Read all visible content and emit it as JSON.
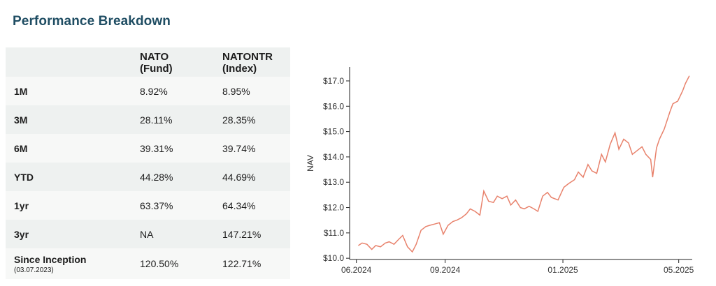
{
  "header": {
    "title": "Performance Breakdown"
  },
  "table": {
    "columns": [
      {
        "line1": "",
        "line2": ""
      },
      {
        "line1": "NATO",
        "line2": "(Fund)"
      },
      {
        "line1": "NATONTR",
        "line2": "(Index)"
      }
    ],
    "rows": [
      {
        "label": "1M",
        "fund": "8.92%",
        "index": "8.95%"
      },
      {
        "label": "3M",
        "fund": "28.11%",
        "index": "28.35%"
      },
      {
        "label": "6M",
        "fund": "39.31%",
        "index": "39.74%"
      },
      {
        "label": "YTD",
        "fund": "44.28%",
        "index": "44.69%"
      },
      {
        "label": "1yr",
        "fund": "63.37%",
        "index": "64.34%"
      },
      {
        "label": "3yr",
        "fund": "NA",
        "index": "147.21%"
      },
      {
        "label": "Since Inception",
        "sublabel": "(03.07.2023)",
        "fund": "120.50%",
        "index": "122.71%"
      }
    ]
  },
  "chart_data": {
    "type": "line",
    "title": "",
    "xlabel": "",
    "ylabel": "NAV",
    "xticks": [
      "06.2024",
      "09.2024",
      "01.2025",
      "05.2025"
    ],
    "yticks": [
      "$10.0",
      "$11.0",
      "$12.0",
      "$13.0",
      "$14.0",
      "$15.0",
      "$16.0",
      "$17.0"
    ],
    "ylim": [
      9.95,
      17.55
    ],
    "xlim": [
      "2024-05-25",
      "2025-05-15"
    ],
    "grid": false,
    "line_color": "#e8826c",
    "series": [
      {
        "x": [
          "2024-06-03",
          "2024-06-07",
          "2024-06-12",
          "2024-06-17",
          "2024-06-21",
          "2024-06-26",
          "2024-07-01",
          "2024-07-05",
          "2024-07-10",
          "2024-07-15",
          "2024-07-19",
          "2024-07-24",
          "2024-07-29",
          "2024-08-02",
          "2024-08-07",
          "2024-08-12",
          "2024-08-16",
          "2024-08-21",
          "2024-08-26",
          "2024-08-30",
          "2024-09-04",
          "2024-09-09",
          "2024-09-13",
          "2024-09-18",
          "2024-09-23",
          "2024-09-27",
          "2024-10-02",
          "2024-10-07",
          "2024-10-11",
          "2024-10-16",
          "2024-10-21",
          "2024-10-25",
          "2024-10-30",
          "2024-11-04",
          "2024-11-08",
          "2024-11-13",
          "2024-11-18",
          "2024-11-22",
          "2024-11-27",
          "2024-12-02",
          "2024-12-06",
          "2024-12-11",
          "2024-12-16",
          "2024-12-20",
          "2024-12-27",
          "2025-01-02",
          "2025-01-07",
          "2025-01-13",
          "2025-01-17",
          "2025-01-22",
          "2025-01-27",
          "2025-01-31",
          "2025-02-05",
          "2025-02-10",
          "2025-02-14",
          "2025-02-19",
          "2025-02-24",
          "2025-02-28",
          "2025-03-05",
          "2025-03-10",
          "2025-03-14",
          "2025-03-19",
          "2025-03-24",
          "2025-03-28",
          "2025-04-02",
          "2025-04-04",
          "2025-04-08",
          "2025-04-11",
          "2025-04-16",
          "2025-04-22",
          "2025-04-25",
          "2025-04-30",
          "2025-05-05",
          "2025-05-08",
          "2025-05-12"
        ],
        "y": [
          10.5,
          10.6,
          10.55,
          10.35,
          10.5,
          10.45,
          10.6,
          10.65,
          10.55,
          10.75,
          10.9,
          10.45,
          10.25,
          10.55,
          11.1,
          11.25,
          11.3,
          11.35,
          11.4,
          10.95,
          11.3,
          11.45,
          11.5,
          11.6,
          11.75,
          11.95,
          11.85,
          11.7,
          12.65,
          12.25,
          12.2,
          12.45,
          12.35,
          12.45,
          12.1,
          12.3,
          12.0,
          11.95,
          12.05,
          11.95,
          11.85,
          12.45,
          12.6,
          12.4,
          12.3,
          12.8,
          12.95,
          13.1,
          13.4,
          13.2,
          13.7,
          13.45,
          13.35,
          14.1,
          13.8,
          14.5,
          14.95,
          14.3,
          14.7,
          14.55,
          14.1,
          14.25,
          14.4,
          14.1,
          13.9,
          13.2,
          14.35,
          14.7,
          15.1,
          15.8,
          16.1,
          16.2,
          16.6,
          16.9,
          17.2
        ]
      }
    ]
  }
}
